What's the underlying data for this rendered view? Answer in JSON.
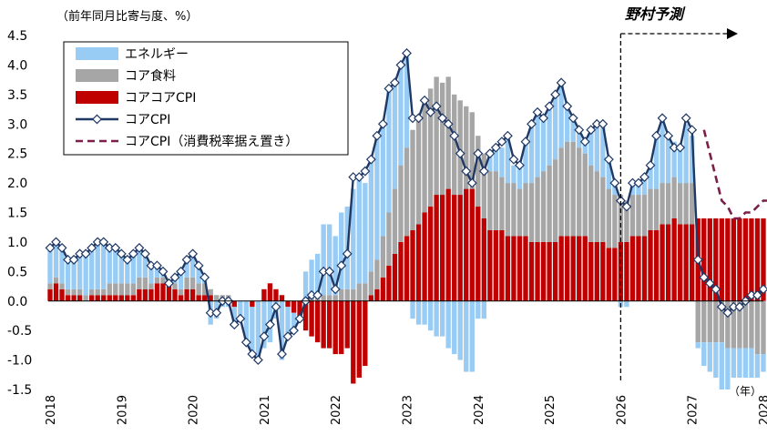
{
  "chart_data": {
    "type": "bar+line",
    "unit_label": "（前年同月比寄与度、%）",
    "year_unit": "（年）",
    "forecast_label": "野村予測",
    "forecast_start": "2026-01",
    "ylim": [
      -1.5,
      4.5
    ],
    "yticks": [
      "4.5",
      "4.0",
      "3.5",
      "3.0",
      "2.5",
      "2.0",
      "1.5",
      "1.0",
      "0.5",
      "0.0",
      "-0.5",
      "-1.0",
      "-1.5"
    ],
    "xticks": [
      "2018",
      "2019",
      "2020",
      "2021",
      "2022",
      "2023",
      "2024",
      "2025",
      "2026",
      "2027",
      "2028"
    ],
    "legend": [
      {
        "key": "energy",
        "label": "エネルギー",
        "kind": "bar",
        "color": "#99ccf5"
      },
      {
        "key": "food",
        "label": "コア食料",
        "kind": "bar",
        "color": "#a6a6a6"
      },
      {
        "key": "corecore",
        "label": "コアコアCPI",
        "kind": "bar",
        "color": "#c00000"
      },
      {
        "key": "core",
        "label": "コアCPI",
        "kind": "line-marker",
        "color": "#1f3864"
      },
      {
        "key": "core_ex_tax",
        "label": "コアCPI（消費税率据え置き）",
        "kind": "dashed",
        "color": "#7b1f4a"
      }
    ],
    "months_start": "2018-01",
    "months_end": "2028-01",
    "core_cpi": [
      0.9,
      1.0,
      0.9,
      0.7,
      0.7,
      0.8,
      0.8,
      0.9,
      1.0,
      1.0,
      0.9,
      0.9,
      0.8,
      0.7,
      0.8,
      0.9,
      0.8,
      0.6,
      0.6,
      0.5,
      0.3,
      0.4,
      0.5,
      0.7,
      0.8,
      0.6,
      0.4,
      -0.2,
      -0.2,
      0.0,
      0.0,
      -0.4,
      -0.3,
      -0.7,
      -0.9,
      -1.0,
      -0.6,
      -0.4,
      -0.1,
      -0.9,
      -0.6,
      -0.5,
      -0.3,
      0.0,
      0.1,
      0.1,
      0.5,
      0.5,
      0.2,
      0.6,
      0.8,
      2.1,
      2.1,
      2.2,
      2.4,
      2.8,
      3.0,
      3.6,
      3.7,
      4.0,
      4.2,
      3.1,
      3.1,
      3.4,
      3.2,
      3.3,
      3.1,
      3.0,
      2.8,
      2.5,
      2.2,
      2.0,
      2.5,
      2.2,
      2.5,
      2.6,
      2.7,
      2.8,
      2.4,
      2.3,
      2.7,
      3.0,
      3.2,
      3.1,
      3.3,
      3.5,
      3.7,
      3.3,
      3.1,
      2.9,
      2.7,
      2.9,
      3.0,
      3.0,
      2.4,
      2.0,
      1.7,
      1.6,
      2.0,
      2.0,
      2.1,
      2.3,
      2.8,
      3.1,
      2.8,
      2.6,
      2.6,
      3.1,
      2.9,
      0.7,
      0.4,
      0.3,
      0.2,
      -0.1,
      -0.2,
      -0.1,
      -0.1,
      0.0,
      0.1,
      0.1,
      0.2
    ],
    "core_cpi_ex_tax": [
      2.9,
      2.5,
      2.1,
      1.7,
      1.6,
      1.4,
      1.4,
      1.5,
      1.5,
      1.6,
      1.7,
      1.7
    ],
    "core_cpi_ex_tax_start": "2027-03",
    "corecore": [
      0.2,
      0.3,
      0.2,
      0.1,
      0.1,
      0.1,
      0.0,
      0.1,
      0.1,
      0.1,
      0.1,
      0.1,
      0.1,
      0.1,
      0.1,
      0.2,
      0.2,
      0.2,
      0.3,
      0.3,
      0.3,
      0.2,
      0.1,
      0.2,
      0.2,
      0.1,
      0.1,
      0.1,
      0.0,
      0.0,
      0.0,
      -0.1,
      0.0,
      0.0,
      -0.1,
      0.0,
      0.2,
      0.3,
      0.2,
      0.1,
      -0.1,
      -0.2,
      -0.3,
      -0.5,
      -0.6,
      -0.7,
      -0.8,
      -0.8,
      -0.9,
      -0.9,
      -0.8,
      -1.4,
      -1.3,
      -1.1,
      0.1,
      0.2,
      0.4,
      0.6,
      0.8,
      1.0,
      1.1,
      1.2,
      1.3,
      1.5,
      1.6,
      1.8,
      1.8,
      1.9,
      1.8,
      1.8,
      1.9,
      1.9,
      1.6,
      1.4,
      1.2,
      1.2,
      1.2,
      1.1,
      1.1,
      1.1,
      1.1,
      1.0,
      1.0,
      1.0,
      1.0,
      1.0,
      1.1,
      1.1,
      1.1,
      1.1,
      1.1,
      1.0,
      1.0,
      1.0,
      0.9,
      0.9,
      1.0,
      1.0,
      1.1,
      1.1,
      1.1,
      1.2,
      1.2,
      1.3,
      1.3,
      1.4,
      1.3,
      1.3,
      1.3,
      1.4,
      1.4,
      1.4,
      1.4,
      1.4,
      1.4,
      1.4,
      1.4,
      1.4,
      1.4,
      1.4,
      1.4
    ],
    "food": [
      0.1,
      0.1,
      0.1,
      0.1,
      0.1,
      0.1,
      0.1,
      0.1,
      0.1,
      0.1,
      0.2,
      0.2,
      0.2,
      0.2,
      0.2,
      0.2,
      0.2,
      0.1,
      0.1,
      0.1,
      0.0,
      0.1,
      0.1,
      0.2,
      0.2,
      0.2,
      0.2,
      0.1,
      0.1,
      0.1,
      0.1,
      0.0,
      0.0,
      0.0,
      0.0,
      0.0,
      0.0,
      0.0,
      0.0,
      0.0,
      0.0,
      0.0,
      0.0,
      0.0,
      0.1,
      0.1,
      0.1,
      0.1,
      0.1,
      0.2,
      0.2,
      0.2,
      0.3,
      0.3,
      0.4,
      0.5,
      0.7,
      0.9,
      1.1,
      1.3,
      1.5,
      1.7,
      1.8,
      1.9,
      2.0,
      2.0,
      1.9,
      1.9,
      1.7,
      1.6,
      1.4,
      1.3,
      1.2,
      1.1,
      1.0,
      1.0,
      0.9,
      0.9,
      0.9,
      0.8,
      0.9,
      1.0,
      1.1,
      1.2,
      1.3,
      1.4,
      1.5,
      1.6,
      1.6,
      1.5,
      1.4,
      1.3,
      1.2,
      1.1,
      1.0,
      0.9,
      0.8,
      0.7,
      0.7,
      0.7,
      0.7,
      0.7,
      0.7,
      0.7,
      0.7,
      0.7,
      0.7,
      0.7,
      0.7,
      -0.7,
      -0.7,
      -0.7,
      -0.7,
      -0.7,
      -0.8,
      -0.8,
      -0.8,
      -0.8,
      -0.8,
      -0.9,
      -0.9
    ],
    "energy": [
      0.6,
      0.6,
      0.6,
      0.5,
      0.5,
      0.6,
      0.7,
      0.7,
      0.8,
      0.8,
      0.6,
      0.6,
      0.5,
      0.4,
      0.5,
      0.5,
      0.4,
      0.3,
      0.2,
      0.1,
      0.0,
      0.1,
      0.3,
      0.3,
      0.4,
      0.3,
      0.1,
      -0.4,
      -0.3,
      -0.1,
      -0.1,
      -0.3,
      -0.3,
      -0.7,
      -0.8,
      -1.0,
      -0.8,
      -0.7,
      -0.3,
      -1.0,
      -0.5,
      -0.3,
      0.0,
      0.5,
      0.6,
      0.7,
      1.2,
      1.2,
      1.0,
      1.3,
      1.4,
      1.7,
      1.8,
      1.7,
      1.9,
      2.1,
      1.9,
      2.1,
      1.8,
      1.7,
      1.6,
      -0.3,
      -0.4,
      -0.4,
      -0.5,
      -0.6,
      -0.6,
      -0.8,
      -0.9,
      -1.0,
      -1.2,
      -1.2,
      -0.3,
      -0.3,
      0.3,
      0.4,
      0.5,
      0.8,
      0.3,
      0.4,
      0.7,
      1.0,
      1.1,
      0.9,
      1.0,
      1.1,
      1.1,
      0.6,
      0.4,
      0.3,
      0.2,
      0.6,
      0.8,
      0.9,
      0.5,
      0.2,
      -0.1,
      -0.1,
      0.2,
      0.2,
      0.3,
      0.4,
      0.9,
      1.1,
      0.8,
      0.6,
      0.6,
      1.0,
      0.8,
      -0.1,
      -0.4,
      -0.5,
      -0.6,
      -0.8,
      -0.7,
      -0.5,
      -0.5,
      -0.5,
      -0.5,
      -0.4,
      -0.3
    ]
  }
}
